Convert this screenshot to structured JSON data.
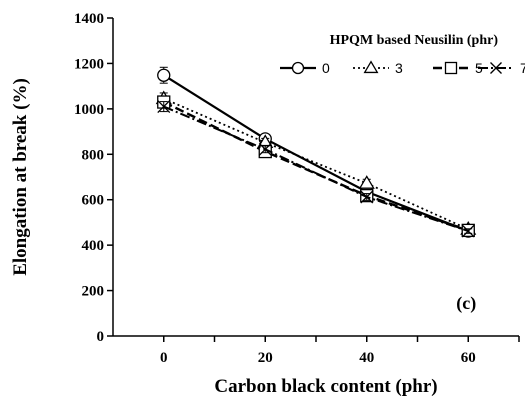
{
  "chart_data": {
    "type": "line",
    "title": "",
    "panel_label": "(c)",
    "xlabel": "Carbon black content (phr)",
    "ylabel": "Elongation at break (%)",
    "x": [
      0,
      20,
      40,
      60
    ],
    "x_ticks": [
      "0",
      "20",
      "40",
      "60"
    ],
    "xlim": [
      -10,
      70
    ],
    "ylim": [
      0,
      1400
    ],
    "y_ticks": [
      "0",
      "200",
      "400",
      "600",
      "800",
      "1000",
      "1200",
      "1400"
    ],
    "grid": false,
    "legend": {
      "title": "HPQM based Neusilin (phr)",
      "placement": "top-right"
    },
    "series": [
      {
        "name": "0",
        "marker": "circle",
        "dash": "solid",
        "values": [
          1148,
          868,
          635,
          462
        ],
        "errors": [
          35,
          20,
          18,
          12
        ]
      },
      {
        "name": "3",
        "marker": "triangle",
        "dash": "dotted",
        "values": [
          1045,
          852,
          672,
          470
        ],
        "errors": [
          25,
          18,
          18,
          12
        ]
      },
      {
        "name": "5",
        "marker": "square",
        "dash": "dashed",
        "values": [
          1030,
          812,
          618,
          465
        ],
        "errors": [
          25,
          18,
          15,
          12
        ]
      },
      {
        "name": "7",
        "marker": "x",
        "dash": "dashdot",
        "values": [
          1010,
          822,
          612,
          462
        ],
        "errors": [
          22,
          15,
          15,
          10
        ]
      }
    ]
  }
}
